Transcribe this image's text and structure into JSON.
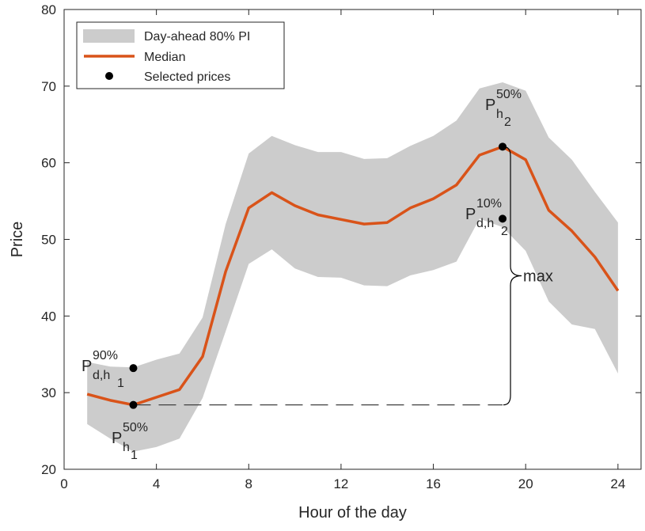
{
  "chart_data": {
    "type": "line",
    "xlabel": "Hour of the day",
    "ylabel": "Price",
    "xlim": [
      0,
      25
    ],
    "ylim": [
      20,
      80
    ],
    "xticks": [
      0,
      4,
      8,
      12,
      16,
      20,
      24
    ],
    "yticks": [
      20,
      30,
      40,
      50,
      60,
      70,
      80
    ],
    "grid": false,
    "legend_position": "top-left",
    "x": [
      1,
      2,
      3,
      4,
      5,
      6,
      7,
      8,
      9,
      10,
      11,
      12,
      13,
      14,
      15,
      16,
      17,
      18,
      19,
      20,
      21,
      22,
      23,
      24
    ],
    "series": [
      {
        "name": "Day-ahead 80% PI",
        "kind": "band",
        "color": "#cccccc",
        "upper": [
          34.0,
          33.4,
          33.3,
          34.3,
          35.1,
          39.8,
          52.0,
          61.2,
          63.5,
          62.3,
          61.4,
          61.4,
          60.5,
          60.6,
          62.2,
          63.5,
          65.5,
          69.7,
          70.5,
          69.4,
          63.3,
          60.4,
          56.2,
          52.2
        ],
        "lower": [
          25.9,
          24.0,
          22.3,
          22.9,
          24.0,
          29.3,
          38.0,
          46.8,
          48.7,
          46.2,
          45.1,
          45.0,
          44.0,
          43.9,
          45.3,
          46.0,
          47.1,
          52.7,
          51.6,
          48.5,
          41.9,
          38.9,
          38.3,
          32.5
        ]
      },
      {
        "name": "Median",
        "kind": "line",
        "color": "#d95319",
        "values": [
          29.8,
          29.0,
          28.4,
          29.4,
          30.4,
          34.7,
          45.8,
          54.1,
          56.1,
          54.4,
          53.2,
          52.6,
          52.0,
          52.2,
          54.1,
          55.3,
          57.1,
          61.0,
          62.1,
          60.4,
          53.8,
          51.1,
          47.7,
          43.3
        ]
      },
      {
        "name": "Selected prices",
        "kind": "points",
        "color": "#000000",
        "points": [
          {
            "x": 3,
            "y": 33.2
          },
          {
            "x": 3,
            "y": 28.4
          },
          {
            "x": 19,
            "y": 62.1
          },
          {
            "x": 19,
            "y": 52.7
          }
        ]
      }
    ],
    "annotations": {
      "p90_d_h1": {
        "main": "P",
        "sup": "90%",
        "sub": "d,h",
        "subsub": "1"
      },
      "p50_h1": {
        "main": "P",
        "sup": "50%",
        "sub": "h",
        "subsub": "1"
      },
      "p50_h2": {
        "main": "P",
        "sup": "50%",
        "sub": "h",
        "subsub": "2"
      },
      "p10_d_h2": {
        "main": "P",
        "sup": "10%",
        "sub": "d,h",
        "subsub": "2"
      },
      "max_label": "max",
      "dashed_line": {
        "x_from": 3,
        "x_to": 19,
        "y": 28.4
      },
      "brace": {
        "x": 19,
        "y_low": 28.4,
        "y_high": 62.1
      }
    }
  }
}
